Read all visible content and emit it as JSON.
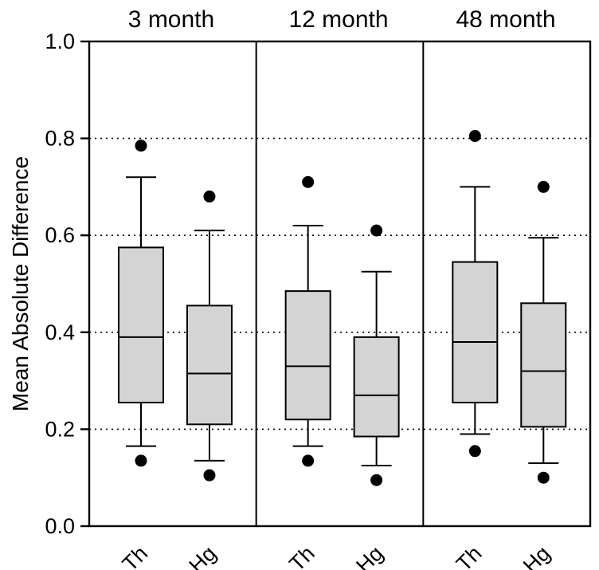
{
  "figure": {
    "background_color": "#ffffff",
    "line_color": "#000000"
  },
  "chart_data": {
    "type": "boxplot",
    "title": "",
    "xlabel": "",
    "ylabel": "Mean Absolute Difference",
    "ylim": [
      0.0,
      1.0
    ],
    "yticks": [
      0.0,
      0.2,
      0.4,
      0.6,
      0.8,
      1.0
    ],
    "ytick_labels": [
      "0.0",
      "0.2",
      "0.4",
      "0.6",
      "0.8",
      "1.0"
    ],
    "gridlines": {
      "style": "dotted",
      "values": [
        0.2,
        0.4,
        0.6,
        0.8
      ]
    },
    "box_fill": "#d4d4d4",
    "line_color": "#000000",
    "group_labels": [
      "Th",
      "Hg"
    ],
    "panels": [
      {
        "title": "3 month",
        "boxes": [
          {
            "label": "Th",
            "q1": 0.255,
            "median": 0.39,
            "q3": 0.575,
            "whisker_low": 0.165,
            "whisker_high": 0.72,
            "outliers": [
              0.785,
              0.135
            ]
          },
          {
            "label": "Hg",
            "q1": 0.21,
            "median": 0.315,
            "q3": 0.455,
            "whisker_low": 0.135,
            "whisker_high": 0.61,
            "outliers": [
              0.68,
              0.105
            ]
          }
        ]
      },
      {
        "title": "12 month",
        "boxes": [
          {
            "label": "Th",
            "q1": 0.22,
            "median": 0.33,
            "q3": 0.485,
            "whisker_low": 0.165,
            "whisker_high": 0.62,
            "outliers": [
              0.71,
              0.135
            ]
          },
          {
            "label": "Hg",
            "q1": 0.185,
            "median": 0.27,
            "q3": 0.39,
            "whisker_low": 0.125,
            "whisker_high": 0.525,
            "outliers": [
              0.61,
              0.095
            ]
          }
        ]
      },
      {
        "title": "48 month",
        "boxes": [
          {
            "label": "Th",
            "q1": 0.255,
            "median": 0.38,
            "q3": 0.545,
            "whisker_low": 0.19,
            "whisker_high": 0.7,
            "outliers": [
              0.805,
              0.155
            ]
          },
          {
            "label": "Hg",
            "q1": 0.205,
            "median": 0.32,
            "q3": 0.46,
            "whisker_low": 0.13,
            "whisker_high": 0.595,
            "outliers": [
              0.7,
              0.1
            ]
          }
        ]
      }
    ]
  }
}
